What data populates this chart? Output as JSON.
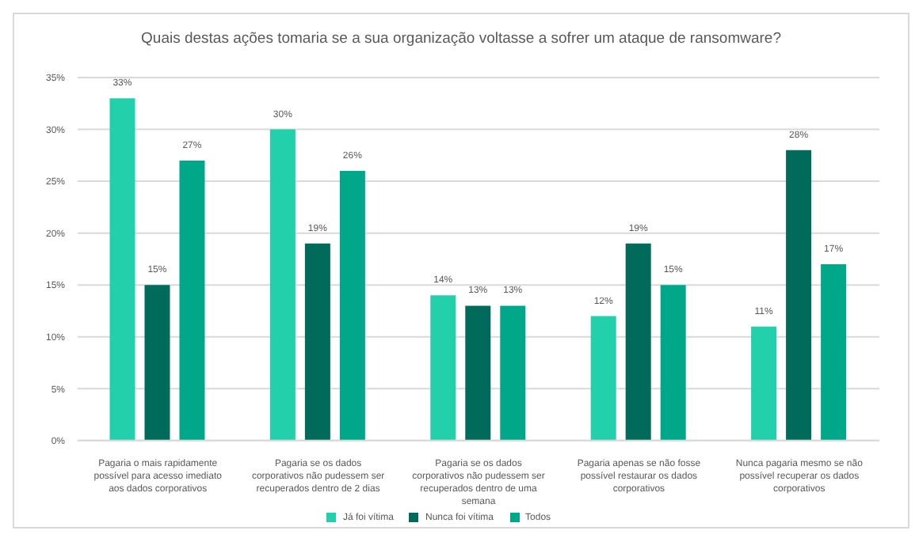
{
  "chart_data": {
    "type": "bar",
    "title": "Quais destas ações tomaria se a sua organização voltasse a sofrer um ataque de ransomware?",
    "categories": [
      "Pagaria o mais rapidamente possível para acesso imediato aos dados corporativos",
      "Pagaria se os dados corporativos não pudessem ser recuperados dentro de 2 dias",
      "Pagaria se os dados corporativos não pudessem ser recuperados dentro de uma semana",
      "Pagaria apenas se não fosse possível restaurar os dados corporativos",
      "Nunca pagaria mesmo se não possível recuperar os dados corporativos"
    ],
    "series": [
      {
        "name": "Já foi vítima",
        "color": "#22d0ac",
        "values": [
          33,
          30,
          14,
          12,
          11
        ],
        "value_labels": [
          "33%",
          "30%",
          "14%",
          "12%",
          "11%"
        ]
      },
      {
        "name": "Nunca foi vítima",
        "color": "#006b5a",
        "values": [
          15,
          19,
          13,
          19,
          28
        ],
        "value_labels": [
          "15%",
          "19%",
          "13%",
          "19%",
          "28%"
        ]
      },
      {
        "name": "Todos",
        "color": "#00a88a",
        "values": [
          27,
          26,
          13,
          15,
          17
        ],
        "value_labels": [
          "27%",
          "26%",
          "13%",
          "15%",
          "17%"
        ]
      }
    ],
    "ylim": [
      0,
      35
    ],
    "yticks": [
      {
        "value": 0,
        "label": "0%"
      },
      {
        "value": 5,
        "label": "5%"
      },
      {
        "value": 10,
        "label": "10%"
      },
      {
        "value": 15,
        "label": "15%"
      },
      {
        "value": 20,
        "label": "20%"
      },
      {
        "value": 25,
        "label": "25%"
      },
      {
        "value": 30,
        "label": "30%"
      },
      {
        "value": 35,
        "label": "35%"
      }
    ],
    "grid": "y",
    "legend": "bottom"
  }
}
